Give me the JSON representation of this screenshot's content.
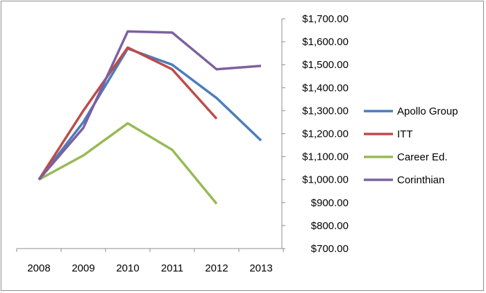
{
  "chart_data": {
    "type": "line",
    "x": [
      "2008",
      "2009",
      "2010",
      "2011",
      "2012",
      "2013"
    ],
    "ylim": [
      700,
      1700
    ],
    "yticks": [
      700,
      800,
      900,
      1000,
      1100,
      1200,
      1300,
      1400,
      1500,
      1600,
      1700
    ],
    "ytick_labels": [
      "$700.00",
      "$800.00",
      "$900.00",
      "$1,000.00",
      "$1,100.00",
      "$1,200.00",
      "$1,300.00",
      "$1,400.00",
      "$1,500.00",
      "$1,600.00",
      "$1,700.00"
    ],
    "y_axis_position": "right",
    "grid": false,
    "legend_position": "right",
    "series": [
      {
        "name": "Apollo Group",
        "color": "#4a7ebb",
        "values": [
          1000,
          1250,
          1570,
          1500,
          1355,
          1170
        ]
      },
      {
        "name": "ITT",
        "color": "#be4b48",
        "values": [
          1000,
          1300,
          1575,
          1480,
          1265,
          null
        ]
      },
      {
        "name": "Career Ed.",
        "color": "#98b954",
        "values": [
          1000,
          1105,
          1245,
          1130,
          895,
          null
        ]
      },
      {
        "name": "Corinthian",
        "color": "#7d60a0",
        "values": [
          1000,
          1225,
          1645,
          1640,
          1480,
          1495
        ]
      }
    ]
  }
}
